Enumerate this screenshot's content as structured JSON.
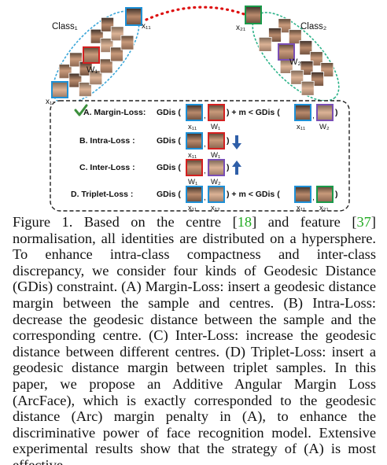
{
  "figure": {
    "class1_label": "Class₁",
    "class2_label": "Class₂",
    "class1_center": "W₁",
    "class2_center": "W₂",
    "class1_sample_top": "x₁₁",
    "class1_sample_bottom": "x₁₂",
    "class2_sample": "x₂₁",
    "rows": [
      {
        "title": "A. Margin-Loss:",
        "formula_start": "GDis (",
        "formula_mid": ") + m < GDis (",
        "formula_end": ")",
        "face_labels": [
          "x₁₁",
          "W₁",
          "x₁₁",
          "W₂"
        ]
      },
      {
        "title": "B. Intra-Loss :",
        "formula_start": "GDis (",
        "formula_end": ")",
        "face_labels": [
          "x₁₁",
          "W₁"
        ],
        "arrow": "down"
      },
      {
        "title": "C. Inter-Loss :",
        "formula_start": "GDis (",
        "formula_end": ")",
        "face_labels": [
          "W₁",
          "W₂"
        ],
        "arrow": "up"
      },
      {
        "title": "D. Triplet-Loss :",
        "formula_start": "GDis (",
        "formula_mid": ") + m < GDis (",
        "formula_end": ")",
        "face_labels": [
          "x₁₁",
          "x₁₂",
          "x₁₁",
          "x₂₁"
        ]
      }
    ],
    "colors": {
      "class1_ellipse": "#3aa6d9",
      "class2_ellipse": "#2db38a",
      "center_link": "#dd1111",
      "arrow": "#2f5fa8",
      "check": "#3c8f3c",
      "frame_x11": "#1e90d6",
      "frame_w1": "#d42020",
      "frame_w2": "#7a4fb5",
      "frame_x12": "#1e90d6",
      "frame_x21": "#1a9a4a"
    }
  },
  "caption": {
    "lead": "Figure 1. Based on the centre [",
    "ref1": "18",
    "mid": "] and feature [",
    "ref2": "37",
    "rest": "] normalisation, all identities are distributed on a hypersphere. To enhance intra-class compactness and inter-class discrepancy, we consider four kinds of Geodesic Distance (GDis) constraint. (A) Margin-Loss: insert a geodesic distance margin between the sample and centres. (B) Intra-Loss: decrease the geodesic distance between the sample and the corresponding centre. (C) Inter-Loss: increase the geodesic distance between different centres. (D) Triplet-Loss: insert a geodesic distance margin between triplet samples. In this paper, we propose an Additive Angular Margin Loss (ArcFace), which is exactly corresponded to the geodesic distance (Arc) margin penalty in (A), to enhance the discriminative power of face recognition model. Extensive experimental results show that the strategy of (A) is most effective."
  }
}
